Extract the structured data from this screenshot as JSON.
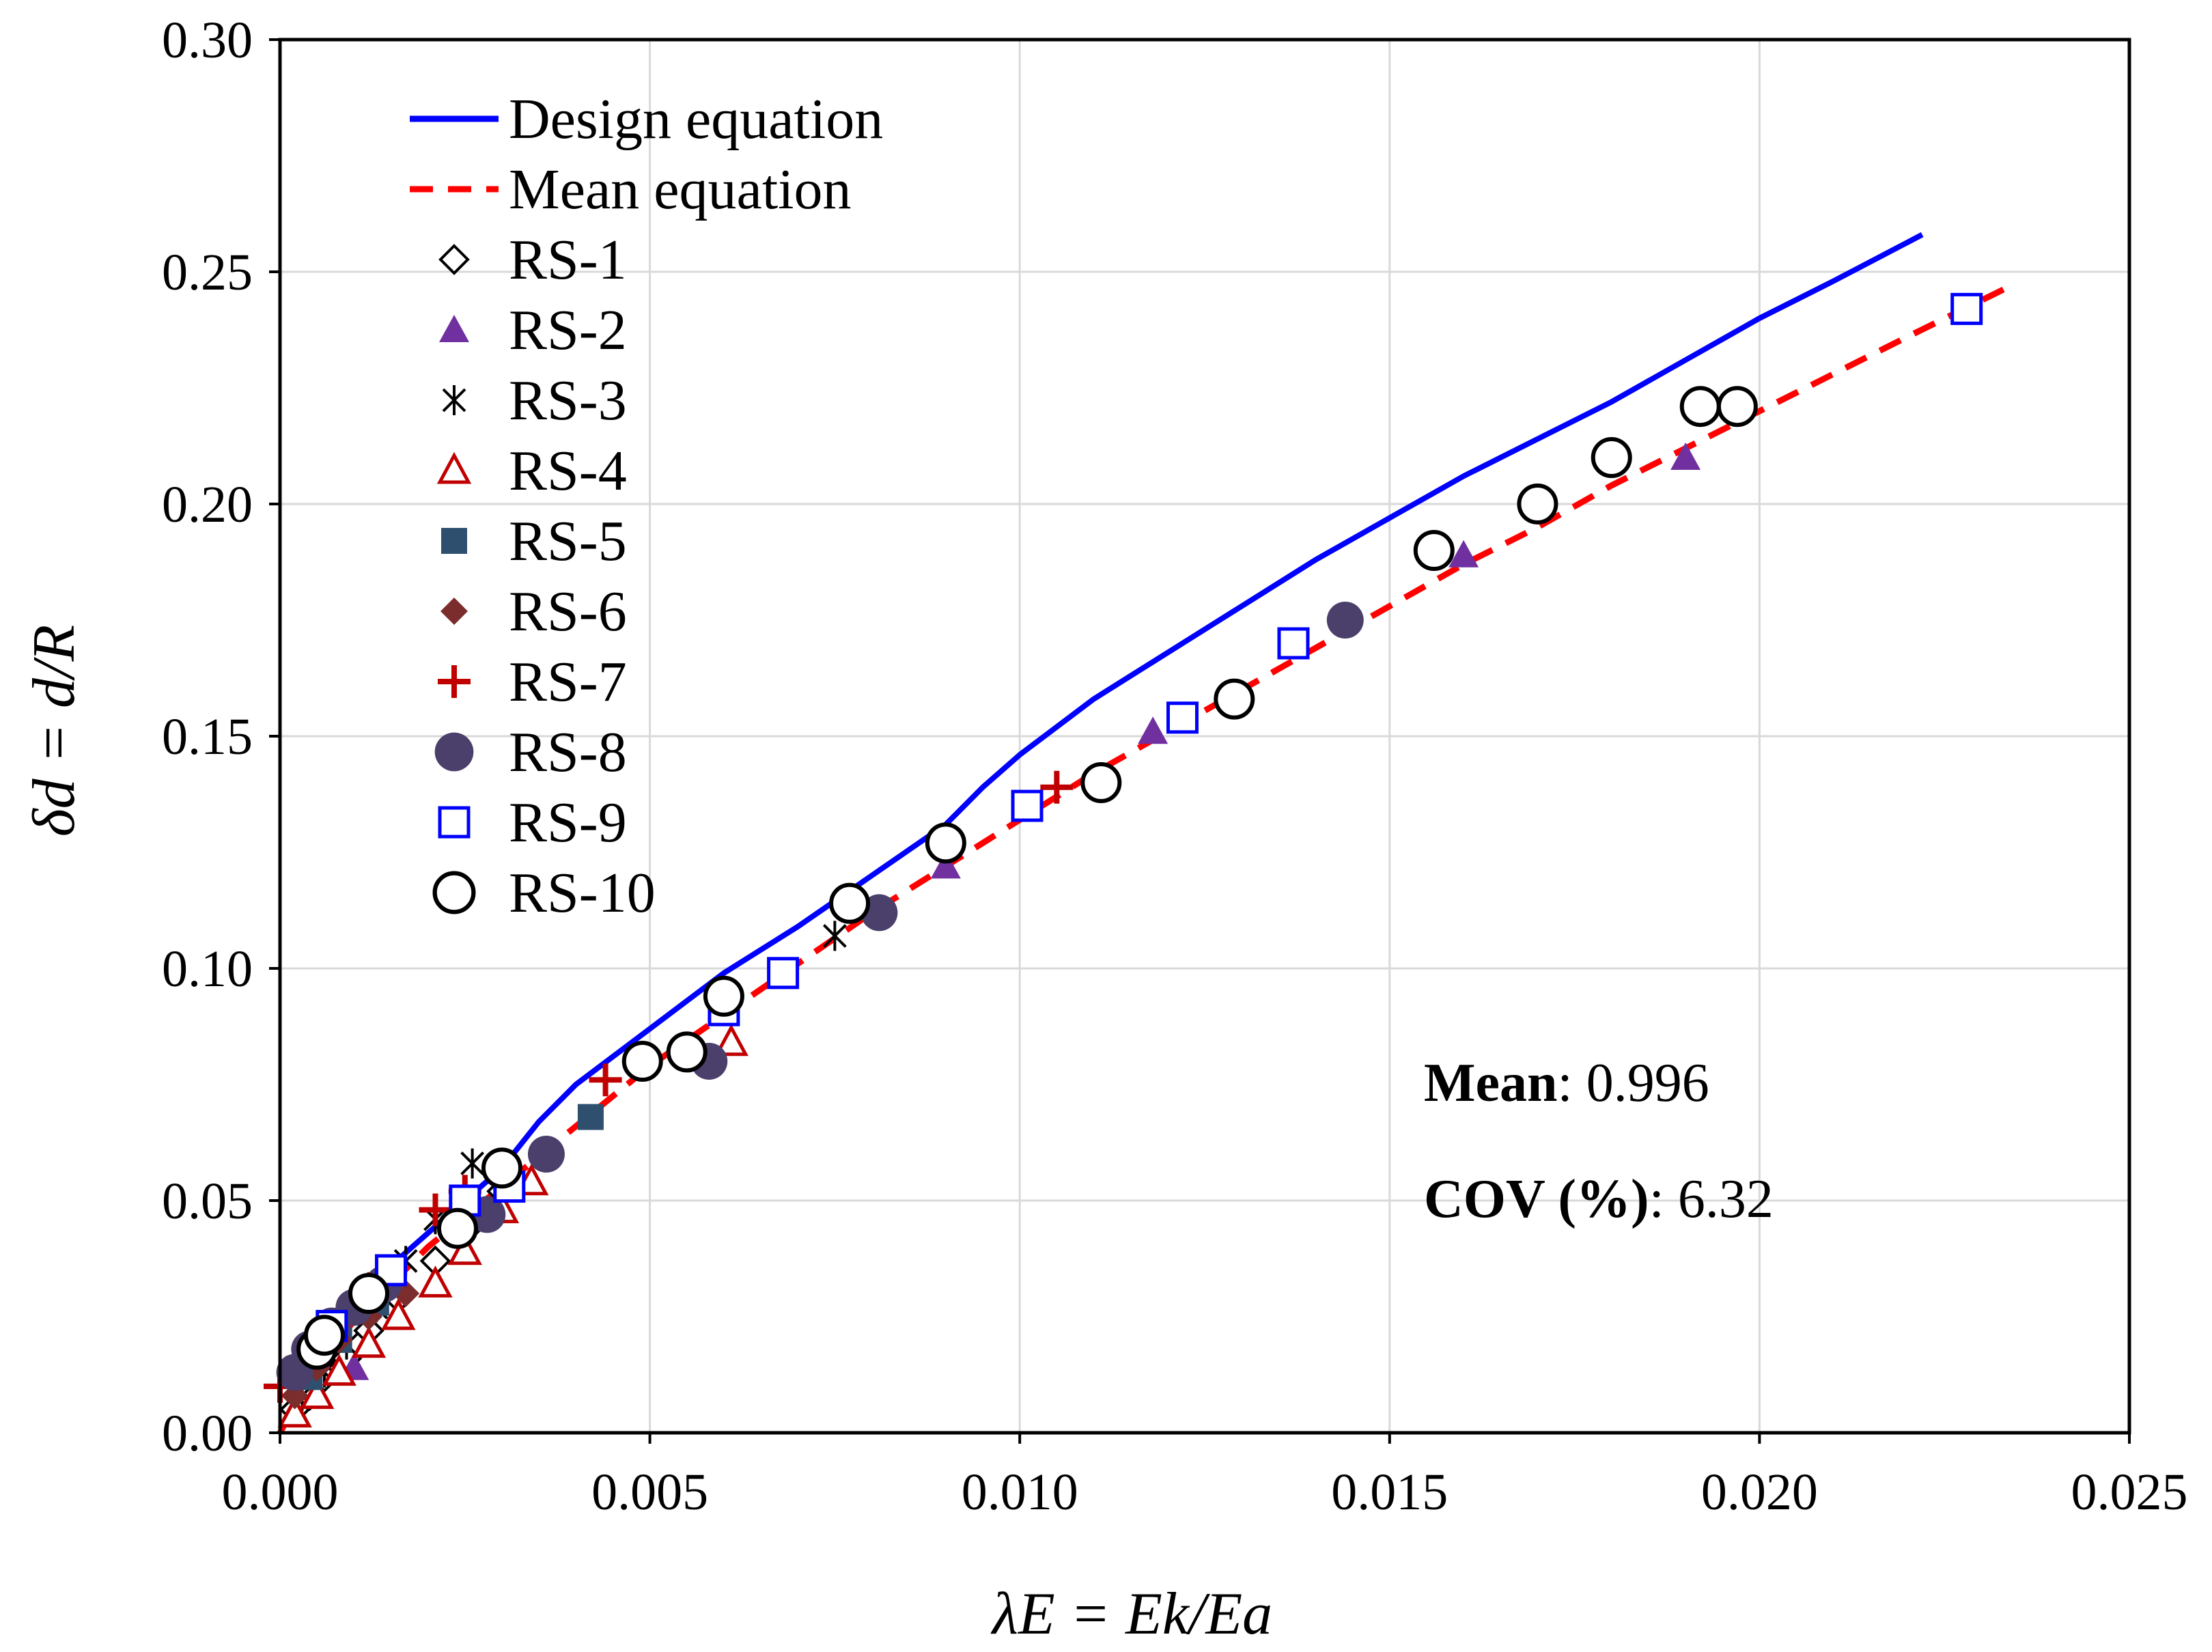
{
  "chart_data": {
    "type": "scatter",
    "title": "",
    "xlabel": "λE = Ek/Ea",
    "ylabel": "δd = d/R",
    "xlim": [
      0,
      0.025
    ],
    "ylim": [
      0,
      0.3
    ],
    "grid": true,
    "legend_position": "top-left",
    "x_ticks": [
      "0.000",
      "0.005",
      "0.010",
      "0.015",
      "0.020",
      "0.025"
    ],
    "y_ticks": [
      "0.00",
      "0.05",
      "0.10",
      "0.15",
      "0.20",
      "0.25",
      "0.30"
    ],
    "stats": {
      "mean_label": "Mean",
      "mean_value": ": 0.996",
      "cov_label": "COV (%)",
      "cov_value": ": 6.32"
    },
    "lines": [
      {
        "name": "Design equation",
        "color": "#0000ff",
        "style": "solid",
        "x": [
          0.0,
          0.0005,
          0.001,
          0.0015,
          0.002,
          0.0025,
          0.003,
          0.0035,
          0.004,
          0.005,
          0.006,
          0.007,
          0.008,
          0.009,
          0.0095,
          0.01,
          0.011,
          0.012,
          0.013,
          0.014,
          0.015,
          0.016,
          0.017,
          0.018,
          0.019,
          0.02,
          0.021,
          0.0222
        ],
        "y": [
          0.0,
          0.018,
          0.03,
          0.036,
          0.043,
          0.05,
          0.057,
          0.067,
          0.075,
          0.087,
          0.099,
          0.109,
          0.12,
          0.131,
          0.139,
          0.146,
          0.158,
          0.168,
          0.178,
          0.188,
          0.197,
          0.206,
          0.214,
          0.222,
          0.231,
          0.24,
          0.248,
          0.258
        ]
      },
      {
        "name": "Mean equation",
        "color": "#ff0000",
        "style": "dashed",
        "x": [
          0.0,
          0.0005,
          0.001,
          0.002,
          0.003,
          0.004,
          0.005,
          0.006,
          0.007,
          0.008,
          0.009,
          0.01,
          0.011,
          0.012,
          0.013,
          0.014,
          0.015,
          0.016,
          0.017,
          0.018,
          0.019,
          0.02,
          0.021,
          0.022,
          0.0234
        ],
        "y": [
          0.0,
          0.015,
          0.024,
          0.04,
          0.053,
          0.066,
          0.079,
          0.09,
          0.101,
          0.112,
          0.122,
          0.132,
          0.142,
          0.151,
          0.16,
          0.169,
          0.178,
          0.187,
          0.195,
          0.204,
          0.212,
          0.22,
          0.228,
          0.236,
          0.247
        ]
      }
    ],
    "series": [
      {
        "name": "RS-1",
        "marker": "diamond-open",
        "color": "#000000",
        "x": [
          0.0002,
          0.0004,
          0.0006,
          0.0009,
          0.0012,
          0.0016,
          0.0021,
          0.0026,
          0.003
        ],
        "y": [
          0.005,
          0.008,
          0.012,
          0.016,
          0.022,
          0.029,
          0.037,
          0.045,
          0.052
        ]
      },
      {
        "name": "RS-2",
        "marker": "triangle-filled",
        "color": "#7030a0",
        "x": [
          0.001,
          0.009,
          0.0118,
          0.016,
          0.019
        ],
        "y": [
          0.014,
          0.122,
          0.151,
          0.189,
          0.21
        ]
      },
      {
        "name": "RS-3",
        "marker": "asterisk",
        "color": "#000000",
        "x": [
          0.0003,
          0.0006,
          0.0009,
          0.0013,
          0.0017,
          0.0021,
          0.0026,
          0.0075
        ],
        "y": [
          0.008,
          0.013,
          0.019,
          0.027,
          0.037,
          0.046,
          0.058,
          0.107
        ]
      },
      {
        "name": "RS-4",
        "marker": "triangle-open",
        "color": "#c00000",
        "x": [
          0.0002,
          0.0005,
          0.0008,
          0.0012,
          0.0016,
          0.0021,
          0.0025,
          0.003,
          0.0034,
          0.0061
        ],
        "y": [
          0.004,
          0.008,
          0.013,
          0.019,
          0.025,
          0.032,
          0.039,
          0.048,
          0.054,
          0.084
        ]
      },
      {
        "name": "RS-5",
        "marker": "square-filled",
        "color": "#2f4f6f",
        "x": [
          0.0004,
          0.0008,
          0.0013,
          0.0024,
          0.0042
        ],
        "y": [
          0.012,
          0.02,
          0.028,
          0.044,
          0.068
        ]
      },
      {
        "name": "RS-6",
        "marker": "diamond-filled",
        "color": "#7b2c2c",
        "x": [
          0.0002,
          0.0005,
          0.0008,
          0.0012,
          0.0017
        ],
        "y": [
          0.008,
          0.014,
          0.02,
          0.025,
          0.03
        ]
      },
      {
        "name": "RS-7",
        "marker": "plus",
        "color": "#c00000",
        "x": [
          0.0,
          0.0003,
          0.0006,
          0.001,
          0.0014,
          0.0021,
          0.0025,
          0.003,
          0.0044,
          0.0105
        ],
        "y": [
          0.01,
          0.016,
          0.022,
          0.028,
          0.034,
          0.048,
          0.052,
          0.055,
          0.076,
          0.139
        ]
      },
      {
        "name": "RS-8",
        "marker": "circle-filled",
        "color": "#4b3f6b",
        "x": [
          0.0002,
          0.0004,
          0.0007,
          0.001,
          0.0014,
          0.0028,
          0.0036,
          0.0058,
          0.0081,
          0.0144
        ],
        "y": [
          0.013,
          0.018,
          0.023,
          0.027,
          0.032,
          0.047,
          0.06,
          0.08,
          0.112,
          0.175
        ]
      },
      {
        "name": "RS-9",
        "marker": "square-open",
        "color": "#0000ff",
        "x": [
          0.0007,
          0.0015,
          0.0025,
          0.0031,
          0.006,
          0.0068,
          0.0101,
          0.0122,
          0.0137,
          0.0228
        ],
        "y": [
          0.023,
          0.035,
          0.05,
          0.053,
          0.091,
          0.099,
          0.135,
          0.154,
          0.17,
          0.242
        ]
      },
      {
        "name": "RS-10",
        "marker": "circle-open",
        "color": "#000000",
        "x": [
          0.0005,
          0.0006,
          0.0012,
          0.0024,
          0.003,
          0.0049,
          0.0055,
          0.006,
          0.0077,
          0.009,
          0.0111,
          0.0129,
          0.0156,
          0.017,
          0.018,
          0.0192,
          0.0197
        ],
        "y": [
          0.018,
          0.021,
          0.03,
          0.044,
          0.057,
          0.08,
          0.082,
          0.094,
          0.114,
          0.127,
          0.14,
          0.158,
          0.19,
          0.2,
          0.21,
          0.221,
          0.221
        ]
      }
    ]
  }
}
